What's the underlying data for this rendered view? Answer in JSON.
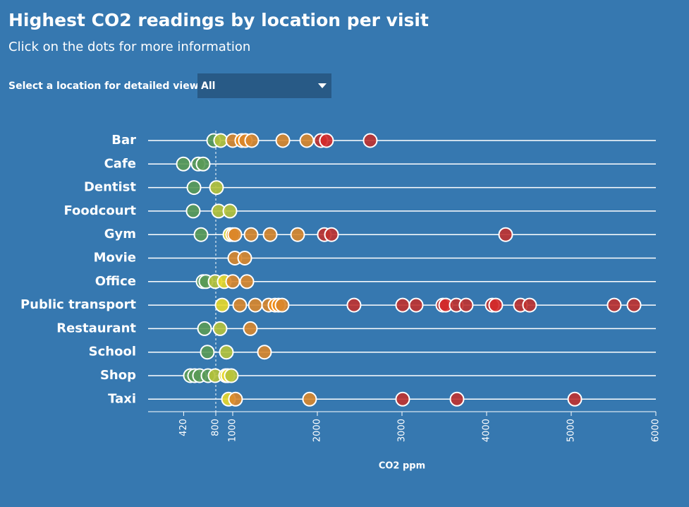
{
  "chart_data": {
    "type": "strip",
    "title": "Highest CO2 readings by location per visit",
    "subtitle": "Click on the dots for more information",
    "control": {
      "label": "Select a location for detailed view",
      "value": "All"
    },
    "xlabel": "CO2 ppm",
    "xlim": [
      0,
      6000
    ],
    "xticks": [
      420,
      800,
      1000,
      2000,
      3000,
      4000,
      5000,
      6000
    ],
    "reference_line": 800,
    "series": [
      {
        "name": "Bar",
        "values": [
          775,
          858,
          1000,
          1108,
          1150,
          1225,
          1592,
          1875,
          2042,
          2108,
          2625
        ],
        "colors": [
          "#5a9a56",
          "#b5c23a",
          "#d9862b",
          "#f08a12",
          "#d9862b",
          "#d9862b",
          "#d9862b",
          "#d9862b",
          "#c0312f",
          "#d42a2a",
          "#c0312f"
        ]
      },
      {
        "name": "Cafe",
        "values": [
          417,
          592,
          650
        ],
        "colors": [
          "#5a9a56",
          "#5a9a56",
          "#5a9a56"
        ]
      },
      {
        "name": "Dentist",
        "values": [
          542,
          808
        ],
        "colors": [
          "#5a9a56",
          "#b5c23a"
        ]
      },
      {
        "name": "Foodcourt",
        "values": [
          533,
          833,
          967
        ],
        "colors": [
          "#5a9a56",
          "#b5c23a",
          "#b5c23a"
        ]
      },
      {
        "name": "Gym",
        "values": [
          625,
          967,
          1000,
          1025,
          1217,
          1442,
          1767,
          2083,
          2167,
          4225
        ],
        "colors": [
          "#5a9a56",
          "#e8d82a",
          "#f08a12",
          "#d9862b",
          "#d9862b",
          "#d9862b",
          "#d9862b",
          "#c0312f",
          "#c0312f",
          "#c0312f"
        ]
      },
      {
        "name": "Movie",
        "values": [
          1025,
          1142
        ],
        "colors": [
          "#d9862b",
          "#d9862b"
        ]
      },
      {
        "name": "Office",
        "values": [
          650,
          683,
          792,
          900,
          1000,
          1167
        ],
        "colors": [
          "#5a9a56",
          "#5a9a56",
          "#b5c23a",
          "#e8d82a",
          "#d9862b",
          "#d9862b"
        ]
      },
      {
        "name": "Public transport",
        "values": [
          875,
          1083,
          1267,
          1425,
          1500,
          1542,
          1583,
          2433,
          3008,
          3167,
          3483,
          3517,
          3642,
          3758,
          4067,
          4108,
          4400,
          4508,
          5508,
          5742
        ],
        "colors": [
          "#e8d82a",
          "#d9862b",
          "#d9862b",
          "#d9862b",
          "#f08a12",
          "#f08a12",
          "#d9862b",
          "#c0312f",
          "#c0312f",
          "#c0312f",
          "#c0312f",
          "#d42a2a",
          "#c0312f",
          "#c0312f",
          "#c0312f",
          "#d42a2a",
          "#c0312f",
          "#c0312f",
          "#c0312f",
          "#c0312f"
        ]
      },
      {
        "name": "Restaurant",
        "values": [
          667,
          850,
          1208
        ],
        "colors": [
          "#5a9a56",
          "#b5c23a",
          "#d9862b"
        ]
      },
      {
        "name": "School",
        "values": [
          700,
          925,
          1375
        ],
        "colors": [
          "#5a9a56",
          "#b5c23a",
          "#d9862b"
        ]
      },
      {
        "name": "Shop",
        "values": [
          500,
          550,
          608,
          708,
          792,
          917,
          942,
          983
        ],
        "colors": [
          "#5a9a56",
          "#5a9a56",
          "#5a9a56",
          "#5a9a56",
          "#b5c23a",
          "#e8d82a",
          "#e8d82a",
          "#b5c23a"
        ]
      },
      {
        "name": "Taxi",
        "values": [
          950,
          1033,
          1908,
          3008,
          3650,
          5042
        ],
        "colors": [
          "#e8d82a",
          "#d9862b",
          "#d9862b",
          "#c0312f",
          "#c0312f",
          "#c0312f"
        ]
      }
    ]
  }
}
